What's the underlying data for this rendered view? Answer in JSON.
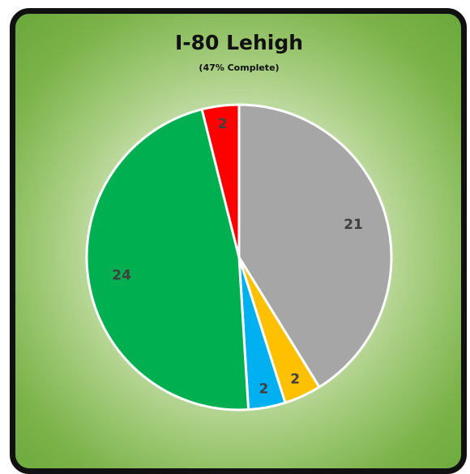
{
  "chart_data": {
    "type": "pie",
    "title": "I-80 Lehigh",
    "subtitle": "(47% Complete)",
    "values": [
      21,
      2,
      2,
      24,
      2
    ],
    "colors": [
      "#a6a6a6",
      "#ffc000",
      "#00b0f0",
      "#00b050",
      "#ff0000"
    ]
  }
}
